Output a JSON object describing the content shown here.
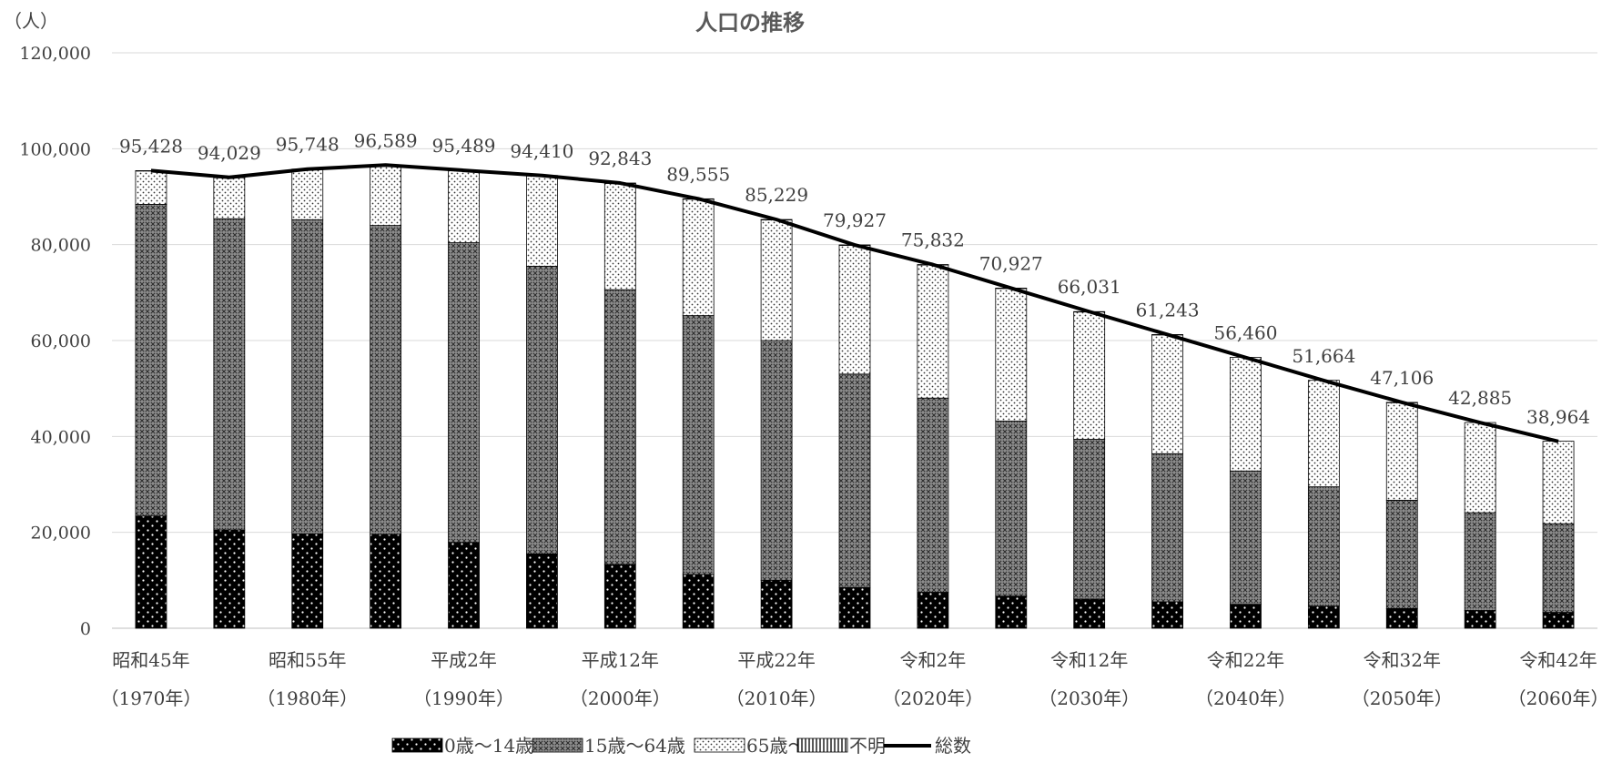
{
  "chart_data": {
    "type": "bar",
    "stacked": true,
    "title": "人口の推移",
    "y_unit_label": "（人）",
    "ylim": [
      0,
      120000
    ],
    "y_ticks": [
      "0",
      "20,000",
      "40,000",
      "60,000",
      "80,000",
      "100,000",
      "120,000"
    ],
    "grid": true,
    "legend_position": "bottom",
    "x_tick_labels": [
      {
        "line1": "昭和45年",
        "line2": "（1970年）"
      },
      {
        "line1": "昭和55年",
        "line2": "（1980年）"
      },
      {
        "line1": "平成2年",
        "line2": "（1990年）"
      },
      {
        "line1": "平成12年",
        "line2": "（2000年）"
      },
      {
        "line1": "平成22年",
        "line2": "（2010年）"
      },
      {
        "line1": "令和2年",
        "line2": "（2020年）"
      },
      {
        "line1": "令和12年",
        "line2": "（2030年）"
      },
      {
        "line1": "令和22年",
        "line2": "（2040年）"
      },
      {
        "line1": "令和32年",
        "line2": "（2050年）"
      },
      {
        "line1": "令和42年",
        "line2": "（2060年）"
      }
    ],
    "bar_count": 19,
    "series": [
      {
        "name": "0歳～14歳",
        "pattern": "dark-dots",
        "values": [
          23400,
          20500,
          19700,
          19600,
          17900,
          15500,
          13300,
          11200,
          10000,
          8500,
          7500,
          6700,
          6100,
          5500,
          5000,
          4600,
          4100,
          3700,
          3300
        ]
      },
      {
        "name": "15歳～64歳",
        "pattern": "crosshatch",
        "values": [
          65000,
          64900,
          65500,
          64400,
          62500,
          60000,
          57300,
          54000,
          50000,
          44500,
          40500,
          36500,
          33300,
          30900,
          27800,
          24900,
          22600,
          20400,
          18500
        ]
      },
      {
        "name": "65歳～",
        "pattern": "light-dots",
        "values": [
          7000,
          8600,
          10500,
          12600,
          15100,
          18900,
          22200,
          24300,
          25200,
          26900,
          27800,
          27700,
          26600,
          24800,
          23700,
          22200,
          20400,
          18800,
          17200
        ]
      },
      {
        "name": "不明",
        "pattern": "vertical-lines",
        "values": [
          28,
          29,
          48,
          0,
          0,
          10,
          43,
          55,
          29,
          27,
          32,
          27,
          31,
          43,
          0,
          0,
          6,
          0,
          0
        ]
      }
    ],
    "total": {
      "name": "総数",
      "values": [
        95428,
        94029,
        95748,
        96589,
        95489,
        94410,
        92843,
        89555,
        85229,
        79927,
        75832,
        70927,
        66031,
        61243,
        56460,
        51664,
        47106,
        42885,
        38964
      ],
      "labels": [
        "95,428",
        "94,029",
        "95,748",
        "96,589",
        "95,489",
        "94,410",
        "92,843",
        "89,555",
        "85,229",
        "79,927",
        "75,832",
        "70,927",
        "66,031",
        "61,243",
        "56,460",
        "51,664",
        "47,106",
        "42,885",
        "38,964"
      ]
    }
  }
}
